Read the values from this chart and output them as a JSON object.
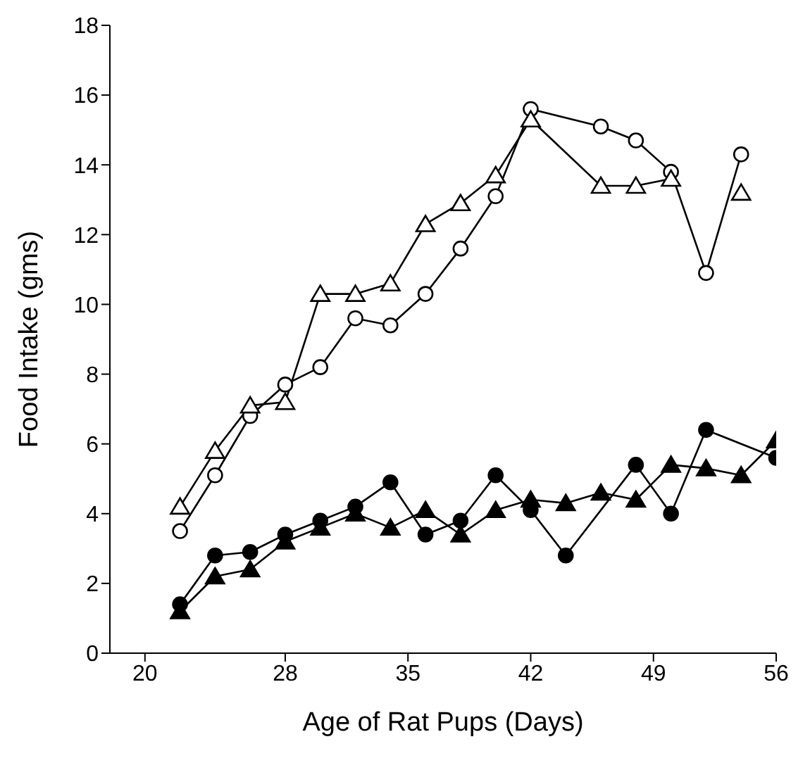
{
  "chart_data": {
    "type": "line",
    "xlabel": "Age of Rat Pups (Days)",
    "ylabel": "Food Intake (gms)",
    "xlim": [
      18,
      56
    ],
    "xticks": [
      20,
      28,
      35,
      42,
      49,
      56
    ],
    "ylim": [
      0,
      18
    ],
    "yticks": [
      0,
      2,
      4,
      6,
      8,
      10,
      12,
      14,
      16,
      18
    ],
    "grid": false,
    "line_style": "solid",
    "series": [
      {
        "color": "#000000",
        "marker": "circle",
        "x": [
          22,
          24,
          26,
          28,
          30,
          32,
          34,
          36,
          38,
          40,
          42,
          46,
          48,
          50,
          52,
          54
        ],
        "values": [
          3.5,
          5.1,
          6.8,
          7.7,
          8.2,
          9.6,
          9.4,
          10.3,
          11.6,
          13.1,
          15.6,
          15.1,
          14.7,
          13.8,
          10.9,
          14.3
        ]
      },
      {
        "color": "#000000",
        "marker": "triangle",
        "x": [
          22,
          24,
          26,
          28,
          30,
          32,
          34,
          36,
          38,
          40,
          42,
          46,
          48,
          50,
          52,
          54
        ],
        "values": [
          4.2,
          5.8,
          7.1,
          7.2,
          10.3,
          10.3,
          10.6,
          12.3,
          12.9,
          13.7,
          15.3,
          13.4,
          13.4,
          13.6,
          null,
          13.2
        ]
      },
      {
        "color": "#000000",
        "marker": "circle",
        "x": [
          22,
          24,
          26,
          28,
          30,
          32,
          34,
          36,
          38,
          40,
          42,
          44,
          48,
          50,
          52,
          56
        ],
        "values": [
          1.4,
          2.8,
          2.9,
          3.4,
          3.8,
          4.2,
          4.9,
          3.4,
          3.8,
          5.1,
          4.1,
          2.8,
          5.4,
          4.0,
          6.4,
          5.6
        ]
      },
      {
        "color": "#000000",
        "marker": "triangle",
        "x": [
          22,
          24,
          26,
          28,
          30,
          32,
          34,
          36,
          38,
          40,
          42,
          44,
          46,
          48,
          50,
          52,
          54,
          56
        ],
        "values": [
          1.2,
          2.2,
          2.4,
          3.2,
          3.6,
          4.0,
          3.6,
          4.1,
          3.4,
          4.1,
          4.4,
          4.3,
          4.6,
          4.4,
          5.4,
          5.3,
          5.1,
          6.1
        ]
      }
    ]
  }
}
